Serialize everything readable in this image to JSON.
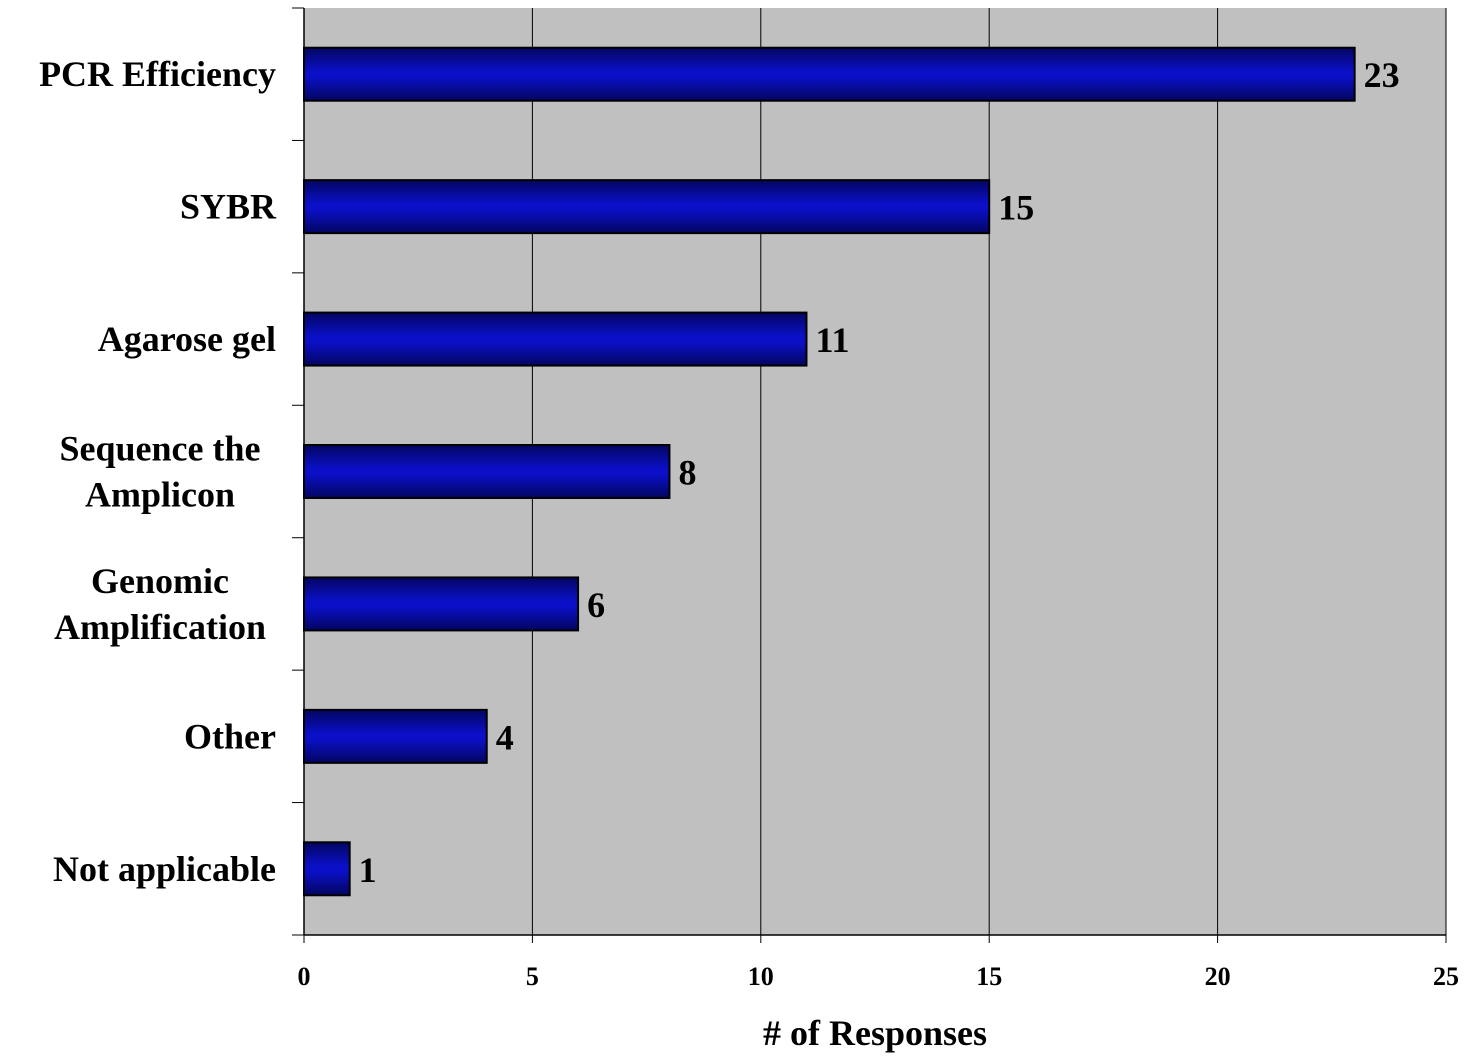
{
  "chart_data": {
    "type": "bar",
    "orientation": "horizontal",
    "categories": [
      [
        "PCR Efficiency"
      ],
      [
        "SYBR"
      ],
      [
        "Agarose gel"
      ],
      [
        "Sequence the",
        "Amplicon"
      ],
      [
        "Genomic",
        "Amplification"
      ],
      [
        "Other"
      ],
      [
        "Not applicable"
      ]
    ],
    "values": [
      23,
      15,
      11,
      8,
      6,
      4,
      1
    ],
    "data_labels": [
      "23",
      "15",
      "11",
      "8",
      "6",
      "4",
      "1"
    ],
    "xlabel": "# of Responses",
    "ylabel": "",
    "xlim": [
      0,
      25
    ],
    "x_ticks": [
      0,
      5,
      10,
      15,
      20,
      25
    ],
    "x_tick_labels": [
      "0",
      "5",
      "10",
      "15",
      "20",
      "25"
    ],
    "grid": "vertical major gridlines",
    "legend": "none",
    "colors": {
      "bar": "#0b10c8",
      "bar_dark": "#030560",
      "plot_background": "#c0c0c0",
      "gridline": "#000000"
    }
  }
}
